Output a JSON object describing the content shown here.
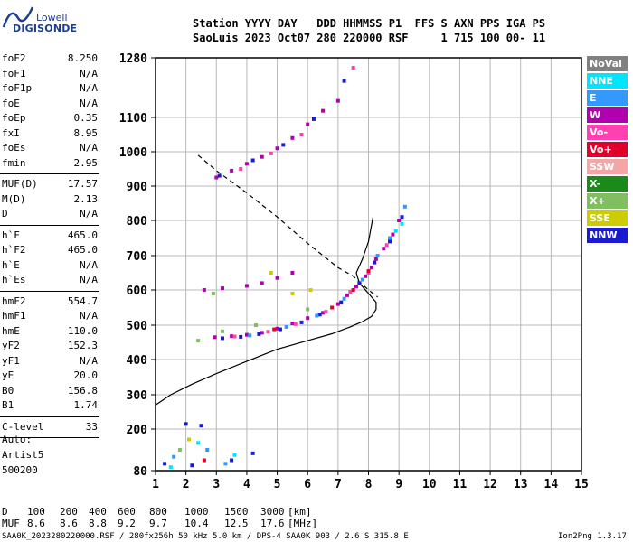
{
  "logo": {
    "org": "Lowell",
    "product": "DIGISONDE"
  },
  "header": {
    "line1": "Station YYYY DAY   DDD HHMMSS P1  FFS S AXN PPS IGA PS",
    "line2": "SaoLuis 2023 Oct07 280 220000 RSF     1 715 100 00- 11"
  },
  "params_group1": [
    {
      "key": "foF2",
      "value": "8.250"
    },
    {
      "key": "foF1",
      "value": "N/A"
    },
    {
      "key": "foF1p",
      "value": "N/A"
    },
    {
      "key": "foE",
      "value": "N/A"
    },
    {
      "key": "foEp",
      "value": "0.35"
    },
    {
      "key": "fxI",
      "value": "8.95"
    },
    {
      "key": "foEs",
      "value": "N/A"
    },
    {
      "key": "fmin",
      "value": "2.95"
    }
  ],
  "params_group2": [
    {
      "key": "MUF(D)",
      "value": "17.57"
    },
    {
      "key": "M(D)",
      "value": "2.13"
    },
    {
      "key": "D",
      "value": "N/A"
    }
  ],
  "params_group3": [
    {
      "key": "h`F",
      "value": "465.0"
    },
    {
      "key": "h`F2",
      "value": "465.0"
    },
    {
      "key": "h`E",
      "value": "N/A"
    },
    {
      "key": "h`Es",
      "value": "N/A"
    }
  ],
  "params_group4": [
    {
      "key": "hmF2",
      "value": "554.7"
    },
    {
      "key": "hmF1",
      "value": "N/A"
    },
    {
      "key": "hmE",
      "value": "110.0"
    },
    {
      "key": "yF2",
      "value": "152.3"
    },
    {
      "key": "yF1",
      "value": "N/A"
    },
    {
      "key": "yE",
      "value": "20.0"
    },
    {
      "key": "B0",
      "value": "156.8"
    },
    {
      "key": "B1",
      "value": "1.74"
    }
  ],
  "params_group5": [
    {
      "key": "C-level",
      "value": "33"
    }
  ],
  "autoscale": {
    "line1": "Auto:",
    "line2": "Artist5",
    "line3": "500200"
  },
  "legend": [
    {
      "label": "NoVal",
      "color": "#808080",
      "text": "#ffffff"
    },
    {
      "label": "NNE",
      "color": "#00e5ff",
      "text": "#ffffff"
    },
    {
      "label": "E",
      "color": "#3399ff",
      "text": "#ffffff"
    },
    {
      "label": "W",
      "color": "#b000b0",
      "text": "#ffffff"
    },
    {
      "label": "Vo-",
      "color": "#ff40b0",
      "text": "#ffffff"
    },
    {
      "label": "Vo+",
      "color": "#e0002a",
      "text": "#ffffff"
    },
    {
      "label": "SSW",
      "color": "#f4a6a6",
      "text": "#ffffff"
    },
    {
      "label": "X-",
      "color": "#1a8a1a",
      "text": "#ffffff"
    },
    {
      "label": "X+",
      "color": "#7fbf5f",
      "text": "#ffffff"
    },
    {
      "label": "SSE",
      "color": "#cccc00",
      "text": "#ffffff"
    },
    {
      "label": "NNW",
      "color": "#1a1ad0",
      "text": "#ffffff"
    }
  ],
  "muf_table": {
    "d_label": "D",
    "d_values": [
      "100",
      "200",
      "400",
      "600",
      "800",
      "1000",
      "1500",
      "3000"
    ],
    "d_unit": "[km]",
    "m_label": "MUF",
    "m_values": [
      "8.6",
      "8.6",
      "8.8",
      "9.2",
      "9.7",
      "10.4",
      "12.5",
      "17.6"
    ],
    "m_unit": "[MHz]"
  },
  "footer": {
    "left": "SAA0K_2023280220000.RSF / 280fx256h 50 kHz 5.0 km / DPS-4 SAA0K 903 / 2.6 S 315.8 E",
    "right": "Ion2Png 1.3.17"
  },
  "chart_data": {
    "type": "scatter",
    "title": "",
    "xlabel": "",
    "ylabel": "",
    "xlim": [
      1,
      15
    ],
    "ylim": [
      80,
      1280
    ],
    "x_ticks": [
      "1",
      "2",
      "3",
      "4",
      "5",
      "6",
      "7",
      "8",
      "9",
      "10",
      "11",
      "12",
      "13",
      "14",
      "15"
    ],
    "y_ticks": [
      "80",
      "200",
      "300",
      "400",
      "500",
      "600",
      "700",
      "800",
      "900",
      "1000",
      "1100",
      "1280"
    ],
    "y_tick_values": [
      80,
      200,
      300,
      400,
      500,
      600,
      700,
      800,
      900,
      1000,
      1100,
      1280
    ],
    "grid": true,
    "series": [
      {
        "name": "W",
        "values": [
          [
            2.95,
            465
          ],
          [
            3.5,
            468
          ],
          [
            4,
            472
          ],
          [
            4.5,
            478
          ],
          [
            5,
            490
          ],
          [
            5.5,
            505
          ],
          [
            6,
            520
          ],
          [
            6.5,
            535
          ],
          [
            7,
            560
          ],
          [
            7.3,
            585
          ],
          [
            7.6,
            610
          ],
          [
            7.9,
            640
          ],
          [
            8.1,
            665
          ],
          [
            8.25,
            690
          ],
          [
            8.5,
            720
          ],
          [
            8.8,
            760
          ],
          [
            9.0,
            800
          ],
          [
            3.0,
            925
          ],
          [
            3.5,
            945
          ],
          [
            4,
            965
          ],
          [
            4.5,
            985
          ],
          [
            5,
            1010
          ],
          [
            5.5,
            1040
          ],
          [
            6,
            1080
          ],
          [
            6.5,
            1120
          ],
          [
            7,
            1150
          ],
          [
            2.6,
            600
          ],
          [
            3.2,
            605
          ],
          [
            4,
            612
          ],
          [
            4.5,
            620
          ],
          [
            5,
            635
          ],
          [
            5.5,
            650
          ]
        ]
      },
      {
        "name": "NNW",
        "values": [
          [
            3.2,
            462
          ],
          [
            3.8,
            466
          ],
          [
            4.4,
            474
          ],
          [
            5.1,
            488
          ],
          [
            5.8,
            508
          ],
          [
            6.4,
            530
          ],
          [
            7.1,
            565
          ],
          [
            7.7,
            620
          ],
          [
            8.2,
            680
          ],
          [
            8.7,
            740
          ],
          [
            9.1,
            810
          ],
          [
            3.1,
            930
          ],
          [
            4.2,
            975
          ],
          [
            5.2,
            1020
          ],
          [
            6.2,
            1095
          ],
          [
            7.2,
            1210
          ],
          [
            1.3,
            100
          ],
          [
            2.2,
            95
          ],
          [
            3.5,
            110
          ],
          [
            4.2,
            130
          ],
          [
            2.0,
            215
          ],
          [
            2.5,
            210
          ]
        ]
      },
      {
        "name": "Vo-",
        "values": [
          [
            3.6,
            467
          ],
          [
            4.7,
            481
          ],
          [
            5.6,
            503
          ],
          [
            6.6,
            538
          ],
          [
            7.4,
            595
          ],
          [
            8.0,
            650
          ],
          [
            8.6,
            730
          ],
          [
            3.8,
            950
          ],
          [
            4.8,
            995
          ],
          [
            5.8,
            1050
          ],
          [
            7.5,
            1250
          ]
        ]
      },
      {
        "name": "E",
        "values": [
          [
            4.1,
            470
          ],
          [
            5.3,
            495
          ],
          [
            6.3,
            527
          ],
          [
            7.2,
            575
          ],
          [
            7.8,
            630
          ],
          [
            8.3,
            700
          ],
          [
            8.7,
            750
          ],
          [
            9.2,
            840
          ],
          [
            1.6,
            120
          ],
          [
            2.7,
            140
          ],
          [
            3.3,
            100
          ]
        ]
      },
      {
        "name": "NNE",
        "values": [
          [
            8.9,
            770
          ],
          [
            9.1,
            790
          ],
          [
            1.5,
            90
          ],
          [
            2.4,
            160
          ],
          [
            3.6,
            125
          ]
        ]
      },
      {
        "name": "X+",
        "values": [
          [
            2.4,
            455
          ],
          [
            3.2,
            482
          ],
          [
            4.3,
            500
          ],
          [
            6.0,
            545
          ],
          [
            2.9,
            590
          ],
          [
            1.8,
            140
          ]
        ]
      },
      {
        "name": "SSE",
        "values": [
          [
            5.5,
            590
          ],
          [
            6.1,
            600
          ],
          [
            4.8,
            650
          ],
          [
            2.1,
            170
          ]
        ]
      },
      {
        "name": "Vo+",
        "values": [
          [
            6.8,
            550
          ],
          [
            7.5,
            600
          ],
          [
            8.0,
            655
          ],
          [
            4.9,
            488
          ],
          [
            2.6,
            110
          ]
        ]
      }
    ],
    "profile_solid": [
      [
        1,
        270
      ],
      [
        1.5,
        300
      ],
      [
        2.2,
        330
      ],
      [
        3.0,
        360
      ],
      [
        4.0,
        395
      ],
      [
        5.0,
        430
      ],
      [
        6.0,
        455
      ],
      [
        6.8,
        475
      ],
      [
        7.4,
        495
      ],
      [
        7.8,
        510
      ],
      [
        8.1,
        525
      ],
      [
        8.25,
        545
      ],
      [
        8.25,
        565
      ],
      [
        8.0,
        590
      ],
      [
        7.7,
        620
      ],
      [
        7.6,
        650
      ],
      [
        7.8,
        690
      ],
      [
        8.0,
        740
      ],
      [
        8.15,
        810
      ]
    ],
    "profile_dashed": [
      [
        2.4,
        990
      ],
      [
        3.0,
        945
      ],
      [
        4.0,
        880
      ],
      [
        5.0,
        810
      ],
      [
        6.0,
        735
      ],
      [
        7.0,
        665
      ],
      [
        7.5,
        640
      ],
      [
        8.0,
        600
      ],
      [
        8.3,
        580
      ]
    ]
  }
}
